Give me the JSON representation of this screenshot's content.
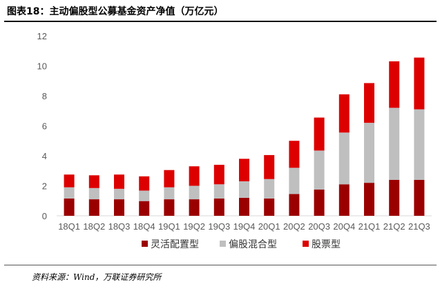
{
  "figure": {
    "title": "图表18：主动偏股型公募基金资产净值（万亿元）",
    "source": "资料来源：Wind，万联证券研究所"
  },
  "chart_data": {
    "type": "bar",
    "stacked": true,
    "categories": [
      "18Q1",
      "18Q2",
      "18Q3",
      "18Q4",
      "19Q1",
      "19Q2",
      "19Q3",
      "19Q4",
      "20Q1",
      "20Q2",
      "20Q3",
      "20Q4",
      "21Q1",
      "21Q2",
      "21Q3"
    ],
    "series": [
      {
        "name": "灵活配置型",
        "color": "#9b0000",
        "values": [
          1.15,
          1.1,
          1.1,
          0.98,
          1.1,
          1.1,
          1.15,
          1.2,
          1.15,
          1.45,
          1.75,
          2.1,
          2.2,
          2.4,
          2.4
        ]
      },
      {
        "name": "偏股混合型",
        "color": "#bfbfbf",
        "values": [
          0.75,
          0.75,
          0.7,
          0.7,
          0.8,
          0.9,
          0.95,
          1.1,
          1.3,
          1.75,
          2.6,
          3.45,
          4.0,
          4.8,
          4.7
        ]
      },
      {
        "name": "股票型",
        "color": "#dd0000",
        "values": [
          0.85,
          0.85,
          0.95,
          0.95,
          1.15,
          1.3,
          1.3,
          1.5,
          1.6,
          1.8,
          2.2,
          2.55,
          2.65,
          3.1,
          3.45
        ]
      }
    ],
    "ylim": [
      0,
      12
    ],
    "yticks": [
      0,
      2,
      4,
      6,
      8,
      10,
      12
    ],
    "grid": false,
    "legend_position": "bottom"
  }
}
